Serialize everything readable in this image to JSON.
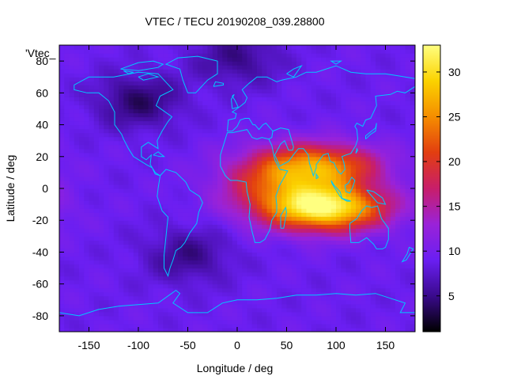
{
  "chart_data": {
    "type": "heatmap",
    "title": "VTEC / TECU 20190208_039.28800",
    "xlabel": "Longitude / deg",
    "ylabel": "Latitude / deg",
    "series_label": "'Vtec_",
    "xlim": [
      -180,
      180
    ],
    "ylim": [
      -90,
      90
    ],
    "xticks": [
      -150,
      -100,
      -50,
      0,
      50,
      100,
      150
    ],
    "yticks": [
      -80,
      -60,
      -40,
      -20,
      0,
      20,
      40,
      60,
      80
    ],
    "colorbar": {
      "range": [
        1,
        33
      ],
      "ticks": [
        5,
        10,
        15,
        20,
        25,
        30
      ],
      "palette": [
        "#000000",
        "#3a0a8c",
        "#6a1ff2",
        "#9a22d8",
        "#c81e6a",
        "#e23e10",
        "#f58d00",
        "#fbd200",
        "#ffff80"
      ]
    },
    "field_features": [
      {
        "kind": "background",
        "value": 9
      },
      {
        "kind": "equatorial-anomaly-north",
        "lon": 85,
        "lat": 14,
        "peak": 24
      },
      {
        "kind": "equatorial-anomaly-south",
        "lon": 90,
        "lat": -12,
        "peak": 32
      },
      {
        "kind": "anomaly-west-extension",
        "lon": 35,
        "lat": 3,
        "peak": 18
      },
      {
        "kind": "low-north-america",
        "lon": -100,
        "lat": 55,
        "low": 4
      },
      {
        "kind": "low-south-pacific",
        "lon": -50,
        "lat": -42,
        "low": 5
      },
      {
        "kind": "low-north-pole",
        "lon": 0,
        "lat": 82,
        "low": 5
      }
    ]
  }
}
